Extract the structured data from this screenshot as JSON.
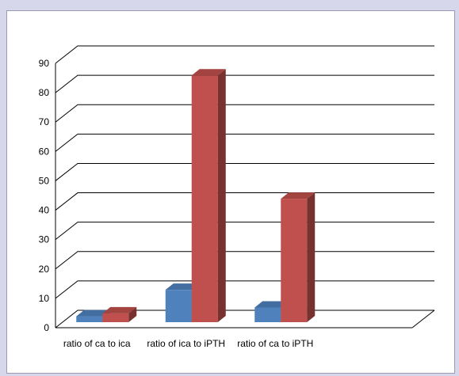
{
  "chart_data": {
    "type": "bar",
    "style": "3d-clustered-column",
    "categories": [
      "ratio of ca to ica",
      "ratio of ica to iPTH",
      "ratio of ca to iPTH"
    ],
    "series": [
      {
        "values": [
          2,
          11,
          5
        ],
        "color": "#4f81bd"
      },
      {
        "values": [
          3,
          84,
          42
        ],
        "color": "#c0504d"
      }
    ],
    "yticks": [
      "0",
      "10",
      "20",
      "30",
      "40",
      "50",
      "60",
      "70",
      "80",
      "90"
    ],
    "ylim": [
      0,
      90
    ],
    "grid": true,
    "legend": "none",
    "title": "",
    "xlabel": "",
    "ylabel": ""
  },
  "colors": {
    "background": "#d7d7ec",
    "plot": "#ffffff",
    "gridline": "#000000"
  }
}
